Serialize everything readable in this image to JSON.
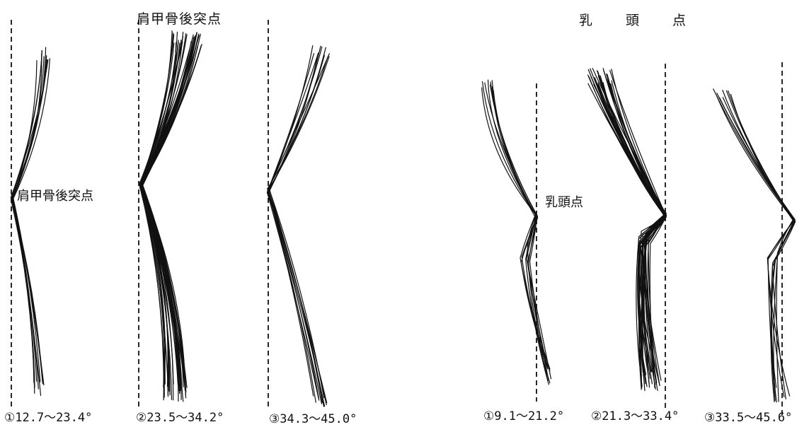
{
  "figure": {
    "group_left": {
      "title": "肩甲骨後突点",
      "landmark_label": "肩甲骨後突点",
      "panels": [
        {
          "caption": "①12.7～23.4°",
          "range": [
            12.7,
            23.4
          ]
        },
        {
          "caption": "②23.5～34.2°",
          "range": [
            23.5,
            34.2
          ]
        },
        {
          "caption": "③34.3～45.0°",
          "range": [
            34.3,
            45.0
          ]
        }
      ]
    },
    "group_right": {
      "title": "乳　頭　点",
      "landmark_label": "乳頭点",
      "panels": [
        {
          "caption": "①9.1～21.2°",
          "range": [
            9.1,
            21.2
          ]
        },
        {
          "caption": "②21.3～33.4°",
          "range": [
            21.3,
            33.4
          ]
        },
        {
          "caption": "③33.5～45.6°",
          "range": [
            33.5,
            45.6
          ]
        }
      ]
    },
    "line_color": "#111111",
    "reference_line_style": "dashed"
  }
}
